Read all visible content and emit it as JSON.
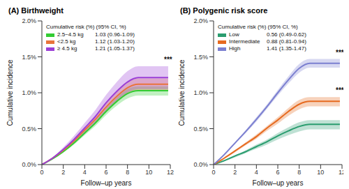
{
  "chart_data": [
    {
      "type": "line",
      "title": "(A) Birthweight",
      "x_label": "Follow–up years",
      "y_label": "Cumulative incidence",
      "x": [
        0,
        1,
        2,
        3,
        4,
        5,
        6,
        7,
        8,
        9,
        10,
        11,
        11.8
      ],
      "xlim": [
        0,
        12
      ],
      "xticks": [
        0,
        2,
        4,
        6,
        8,
        10,
        12
      ],
      "ylim": [
        0,
        2
      ],
      "yticks": [
        {
          "value": 0,
          "label": "0.0%"
        },
        {
          "value": 0.5,
          "label": "0.5%"
        },
        {
          "value": 1,
          "label": "1.0%"
        },
        {
          "value": 1.5,
          "label": "1.5%"
        },
        {
          "value": 2,
          "label": "2.0%"
        }
      ],
      "grid": false,
      "legend": "upper left",
      "legend_title": "Cumulative risk (%) (95% CI, %)",
      "series": [
        {
          "name": "2.5~4.5 kg",
          "risk_label": "1.03 (0.96-1.09)",
          "color": "#33cc33",
          "values": [
            0,
            0.08,
            0.18,
            0.3,
            0.44,
            0.58,
            0.74,
            0.88,
            0.99,
            1.03,
            1.03,
            1.03,
            1.03
          ],
          "lower": [
            0,
            0.075,
            0.17,
            0.28,
            0.41,
            0.54,
            0.69,
            0.82,
            0.92,
            0.96,
            0.96,
            0.96,
            0.96
          ],
          "upper": [
            0,
            0.085,
            0.19,
            0.32,
            0.47,
            0.61,
            0.78,
            0.93,
            1.05,
            1.09,
            1.09,
            1.09,
            1.09
          ]
        },
        {
          "name": "<2.5 kg",
          "risk_label": "1.12 (1.03-1.20)",
          "color": "#e8743b",
          "values": [
            0,
            0.09,
            0.2,
            0.33,
            0.48,
            0.63,
            0.8,
            0.95,
            1.07,
            1.12,
            1.12,
            1.12,
            1.12
          ],
          "lower": [
            0,
            0.083,
            0.18,
            0.3,
            0.44,
            0.58,
            0.74,
            0.87,
            0.98,
            1.03,
            1.03,
            1.03,
            1.03
          ],
          "upper": [
            0,
            0.096,
            0.21,
            0.35,
            0.51,
            0.67,
            0.86,
            1.02,
            1.15,
            1.2,
            1.2,
            1.2,
            1.2
          ]
        },
        {
          "name": "≥ 4.5 kg",
          "risk_label": "1.21 (1.05-1.37)",
          "color": "#9b3fd6",
          "values": [
            0,
            0.09,
            0.21,
            0.35,
            0.51,
            0.67,
            0.86,
            1.02,
            1.15,
            1.21,
            1.21,
            1.21,
            1.21
          ],
          "lower": [
            0,
            0.078,
            0.18,
            0.3,
            0.44,
            0.58,
            0.75,
            0.89,
            1.0,
            1.05,
            1.05,
            1.05,
            1.05
          ],
          "upper": [
            0,
            0.1,
            0.24,
            0.4,
            0.58,
            0.76,
            0.97,
            1.15,
            1.3,
            1.37,
            1.37,
            1.37,
            1.37
          ]
        }
      ],
      "annotations": [
        {
          "text": "***",
          "x": 11.8,
          "y": 1.38
        }
      ]
    },
    {
      "type": "line",
      "title": "(B) Polygenic risk score",
      "x_label": "Follow–up years",
      "y_label": "Cumulative incidence",
      "x": [
        0,
        1,
        2,
        3,
        4,
        5,
        6,
        7,
        8,
        9,
        10,
        11,
        11.8
      ],
      "xlim": [
        0,
        12
      ],
      "xticks": [
        0,
        2,
        4,
        6,
        8,
        10,
        12
      ],
      "ylim": [
        0,
        2
      ],
      "yticks": [
        {
          "value": 0,
          "label": "0.0%"
        },
        {
          "value": 0.5,
          "label": "0.5%"
        },
        {
          "value": 1,
          "label": "1.0%"
        },
        {
          "value": 1.5,
          "label": "1.5%"
        },
        {
          "value": 2,
          "label": "2.0%"
        }
      ],
      "grid": false,
      "legend": "upper left",
      "legend_title": "Cumulative risk (%) (95% CI, %)",
      "series": [
        {
          "name": "Low",
          "risk_label": "0.56 (0.49-0.62)",
          "color": "#2a9d6f",
          "values": [
            0,
            0.055,
            0.12,
            0.18,
            0.25,
            0.32,
            0.4,
            0.47,
            0.53,
            0.56,
            0.56,
            0.56,
            0.56
          ],
          "lower": [
            0,
            0.048,
            0.1,
            0.16,
            0.22,
            0.28,
            0.35,
            0.41,
            0.46,
            0.49,
            0.49,
            0.49,
            0.49
          ],
          "upper": [
            0,
            0.061,
            0.13,
            0.2,
            0.28,
            0.35,
            0.44,
            0.52,
            0.59,
            0.62,
            0.62,
            0.62,
            0.62
          ]
        },
        {
          "name": "Intermediate",
          "risk_label": "0.88 (0.81-0.94)",
          "color": "#e66a1f",
          "values": [
            0,
            0.09,
            0.19,
            0.29,
            0.39,
            0.51,
            0.62,
            0.74,
            0.84,
            0.88,
            0.88,
            0.88,
            0.88
          ],
          "lower": [
            0,
            0.083,
            0.17,
            0.27,
            0.36,
            0.47,
            0.57,
            0.68,
            0.77,
            0.81,
            0.81,
            0.81,
            0.81
          ],
          "upper": [
            0,
            0.096,
            0.2,
            0.31,
            0.42,
            0.54,
            0.66,
            0.79,
            0.9,
            0.94,
            0.94,
            0.94,
            0.94
          ]
        },
        {
          "name": "High",
          "risk_label": "1.41 (1.35-1.47)",
          "color": "#7b7fd0",
          "values": [
            0,
            0.14,
            0.3,
            0.46,
            0.63,
            0.81,
            1.0,
            1.18,
            1.34,
            1.41,
            1.41,
            1.41,
            1.41
          ],
          "lower": [
            0,
            0.13,
            0.29,
            0.44,
            0.6,
            0.78,
            0.96,
            1.13,
            1.28,
            1.35,
            1.35,
            1.35,
            1.35
          ],
          "upper": [
            0,
            0.15,
            0.31,
            0.48,
            0.66,
            0.84,
            1.04,
            1.23,
            1.4,
            1.47,
            1.47,
            1.47,
            1.47
          ]
        }
      ],
      "annotations": [
        {
          "text": "***",
          "x": 11.8,
          "y": 1.48
        },
        {
          "text": "***",
          "x": 11.8,
          "y": 0.95
        }
      ]
    }
  ]
}
